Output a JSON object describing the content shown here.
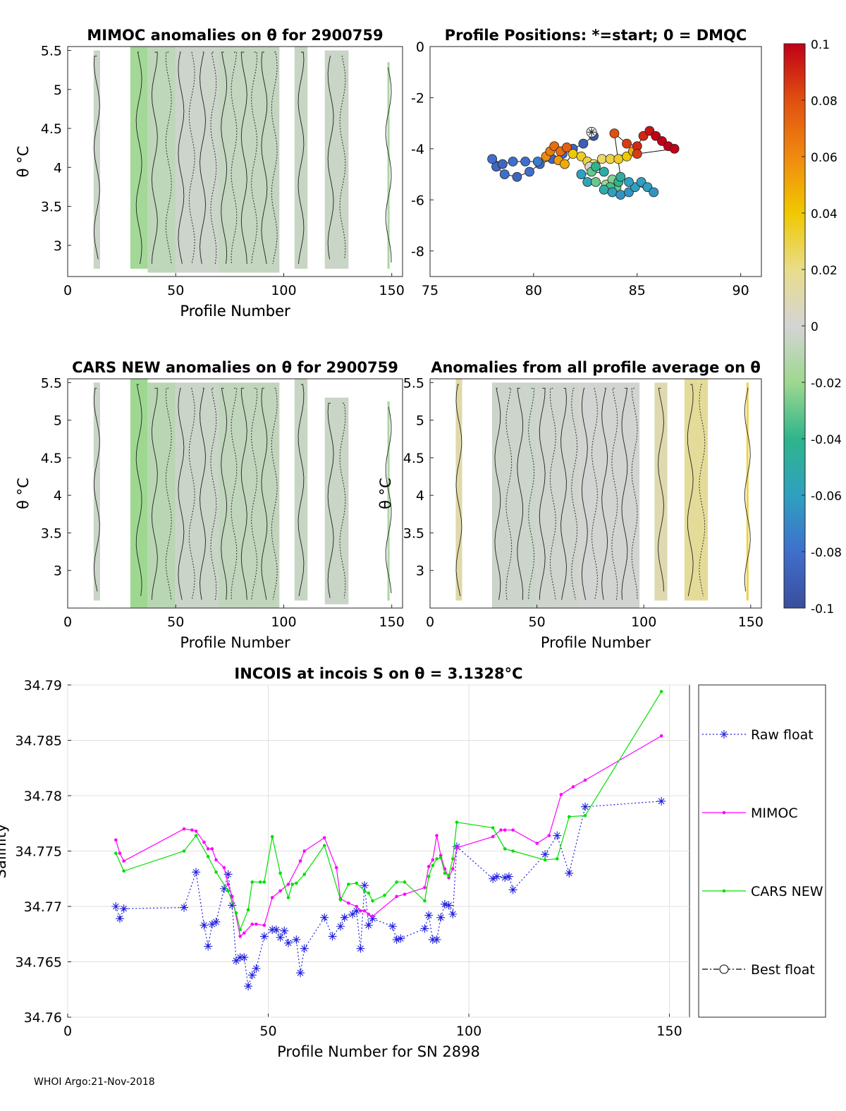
{
  "footer": "WHOI Argo:21-Nov-2018",
  "colorbar": {
    "ticks": [
      "0.1",
      "0.08",
      "0.06",
      "0.04",
      "0.02",
      "0",
      "-0.02",
      "-0.04",
      "-0.06",
      "-0.08",
      "-0.1"
    ],
    "range": [
      -0.1,
      0.1
    ],
    "colors": [
      "#3a4e9c",
      "#3f6fcc",
      "#2fa0c0",
      "#2fb58a",
      "#9ed890",
      "#d4d4d4",
      "#e8dd8a",
      "#f0c800",
      "#f08a10",
      "#e05010",
      "#c00018"
    ]
  },
  "chart_data": [
    {
      "id": "mimoc",
      "type": "heatmap",
      "title": "MIMOC anomalies on θ  for 2900759",
      "xlabel": "Profile Number",
      "ylabel": "θ °C",
      "xlim": [
        0,
        155
      ],
      "ylim": [
        2.6,
        5.55
      ],
      "xticks": [
        "0",
        "50",
        "100",
        "150"
      ],
      "yticks": [
        "3",
        "3.5",
        "4",
        "4.5",
        "5",
        "5.5"
      ],
      "columns": [
        {
          "x0": 12,
          "x1": 15,
          "y0": 2.7,
          "y1": 5.5,
          "value": -0.004
        },
        {
          "x0": 29,
          "x1": 37,
          "y0": 2.7,
          "y1": 5.55,
          "value": -0.018
        },
        {
          "x0": 37,
          "x1": 50,
          "y0": 2.65,
          "y1": 5.55,
          "value": -0.008
        },
        {
          "x0": 50,
          "x1": 70,
          "y0": 2.65,
          "y1": 5.55,
          "value": -0.003
        },
        {
          "x0": 70,
          "x1": 98,
          "y0": 2.65,
          "y1": 5.55,
          "value": -0.006
        },
        {
          "x0": 105,
          "x1": 111,
          "y0": 2.7,
          "y1": 5.55,
          "value": -0.005
        },
        {
          "x0": 119,
          "x1": 130,
          "y0": 2.7,
          "y1": 5.5,
          "value": -0.004
        },
        {
          "x0": 148,
          "x1": 149,
          "y0": 2.7,
          "y1": 5.35,
          "value": -0.015
        }
      ]
    },
    {
      "id": "positions",
      "type": "scatter",
      "title": "Profile Positions: *=start; 0 = DMQC",
      "xlim": [
        75,
        91
      ],
      "ylim": [
        -9,
        0
      ],
      "xticks": [
        "75",
        "80",
        "85",
        "90"
      ],
      "yticks": [
        "0",
        "-2",
        "-4",
        "-6",
        "-8"
      ],
      "points": [
        {
          "lon": 82.9,
          "lat": -3.5,
          "v": -0.095
        },
        {
          "lon": 82.4,
          "lat": -3.8,
          "v": -0.09
        },
        {
          "lon": 81.9,
          "lat": -4.0,
          "v": -0.085
        },
        {
          "lon": 81.4,
          "lat": -4.2,
          "v": -0.08
        },
        {
          "lon": 80.9,
          "lat": -4.4,
          "v": -0.085
        },
        {
          "lon": 80.3,
          "lat": -4.6,
          "v": -0.08
        },
        {
          "lon": 79.8,
          "lat": -4.9,
          "v": -0.08
        },
        {
          "lon": 79.2,
          "lat": -5.1,
          "v": -0.085
        },
        {
          "lon": 78.6,
          "lat": -5.0,
          "v": -0.08
        },
        {
          "lon": 78.2,
          "lat": -4.7,
          "v": -0.085
        },
        {
          "lon": 78.0,
          "lat": -4.4,
          "v": -0.08
        },
        {
          "lon": 78.5,
          "lat": -4.6,
          "v": -0.085
        },
        {
          "lon": 79.0,
          "lat": -4.5,
          "v": -0.08
        },
        {
          "lon": 79.6,
          "lat": -4.5,
          "v": -0.08
        },
        {
          "lon": 80.2,
          "lat": -4.5,
          "v": -0.075
        },
        {
          "lon": 80.6,
          "lat": -4.3,
          "v": 0.06
        },
        {
          "lon": 80.8,
          "lat": -4.1,
          "v": 0.065
        },
        {
          "lon": 81.0,
          "lat": -3.9,
          "v": 0.07
        },
        {
          "lon": 81.3,
          "lat": -4.1,
          "v": 0.07
        },
        {
          "lon": 81.6,
          "lat": -3.95,
          "v": 0.075
        },
        {
          "lon": 81.2,
          "lat": -4.45,
          "v": 0.055
        },
        {
          "lon": 81.5,
          "lat": -4.6,
          "v": 0.05
        },
        {
          "lon": 81.9,
          "lat": -4.2,
          "v": 0.04
        },
        {
          "lon": 82.3,
          "lat": -4.3,
          "v": 0.035
        },
        {
          "lon": 82.6,
          "lat": -4.5,
          "v": 0.03
        },
        {
          "lon": 82.9,
          "lat": -4.6,
          "v": 0.02
        },
        {
          "lon": 83.3,
          "lat": -4.4,
          "v": 0.025
        },
        {
          "lon": 83.7,
          "lat": -4.4,
          "v": 0.03
        },
        {
          "lon": 84.1,
          "lat": -4.4,
          "v": 0.035
        },
        {
          "lon": 84.5,
          "lat": -4.3,
          "v": 0.04
        },
        {
          "lon": 84.8,
          "lat": -4.1,
          "v": 0.05
        },
        {
          "lon": 82.7,
          "lat": -4.7,
          "v": 0.0
        },
        {
          "lon": 82.8,
          "lat": -4.9,
          "v": -0.03
        },
        {
          "lon": 83.0,
          "lat": -4.7,
          "v": -0.04
        },
        {
          "lon": 83.4,
          "lat": -4.9,
          "v": -0.05
        },
        {
          "lon": 82.3,
          "lat": -5.0,
          "v": -0.06
        },
        {
          "lon": 82.6,
          "lat": -5.3,
          "v": -0.055
        },
        {
          "lon": 83.0,
          "lat": -5.3,
          "v": -0.03
        },
        {
          "lon": 83.5,
          "lat": -5.4,
          "v": -0.02
        },
        {
          "lon": 83.8,
          "lat": -5.2,
          "v": -0.025
        },
        {
          "lon": 84.0,
          "lat": -5.5,
          "v": -0.03
        },
        {
          "lon": 83.7,
          "lat": -5.5,
          "v": -0.035
        },
        {
          "lon": 84.1,
          "lat": -5.3,
          "v": -0.04
        },
        {
          "lon": 83.4,
          "lat": -5.6,
          "v": -0.05
        },
        {
          "lon": 83.8,
          "lat": -5.7,
          "v": -0.06
        },
        {
          "lon": 84.2,
          "lat": -5.8,
          "v": -0.065
        },
        {
          "lon": 84.6,
          "lat": -5.7,
          "v": -0.065
        },
        {
          "lon": 84.9,
          "lat": -5.5,
          "v": -0.06
        },
        {
          "lon": 85.2,
          "lat": -5.3,
          "v": -0.06
        },
        {
          "lon": 85.5,
          "lat": -5.5,
          "v": -0.06
        },
        {
          "lon": 85.8,
          "lat": -5.7,
          "v": -0.065
        },
        {
          "lon": 84.6,
          "lat": -5.3,
          "v": -0.06
        },
        {
          "lon": 84.2,
          "lat": -5.1,
          "v": -0.05
        },
        {
          "lon": 83.9,
          "lat": -3.4,
          "v": 0.08
        },
        {
          "lon": 84.5,
          "lat": -3.8,
          "v": 0.085
        },
        {
          "lon": 85.0,
          "lat": -3.9,
          "v": 0.09
        },
        {
          "lon": 85.3,
          "lat": -3.5,
          "v": 0.09
        },
        {
          "lon": 85.6,
          "lat": -3.3,
          "v": 0.095
        },
        {
          "lon": 85.9,
          "lat": -3.5,
          "v": 0.1
        },
        {
          "lon": 86.2,
          "lat": -3.7,
          "v": 0.1
        },
        {
          "lon": 86.5,
          "lat": -3.9,
          "v": 0.1
        },
        {
          "lon": 86.8,
          "lat": -4.0,
          "v": 0.1
        },
        {
          "lon": 85.0,
          "lat": -4.2,
          "v": 0.085
        }
      ],
      "start": {
        "lon": 82.8,
        "lat": -3.35
      }
    },
    {
      "id": "cars",
      "type": "heatmap",
      "title": "CARS NEW anomalies on θ for 2900759",
      "xlabel": "Profile Number",
      "ylabel": "θ °C",
      "xlim": [
        0,
        155
      ],
      "ylim": [
        2.5,
        5.55
      ],
      "xticks": [
        "0",
        "50",
        "100",
        "150"
      ],
      "yticks": [
        "3",
        "3.5",
        "4",
        "4.5",
        "5",
        "5.5"
      ],
      "columns": [
        {
          "x0": 12,
          "x1": 15,
          "y0": 2.6,
          "y1": 5.5,
          "value": -0.004
        },
        {
          "x0": 29,
          "x1": 37,
          "y0": 2.5,
          "y1": 5.55,
          "value": -0.02
        },
        {
          "x0": 37,
          "x1": 50,
          "y0": 2.5,
          "y1": 5.5,
          "value": -0.01
        },
        {
          "x0": 50,
          "x1": 70,
          "y0": 2.5,
          "y1": 5.5,
          "value": -0.004
        },
        {
          "x0": 70,
          "x1": 98,
          "y0": 2.5,
          "y1": 5.5,
          "value": -0.007
        },
        {
          "x0": 105,
          "x1": 111,
          "y0": 2.6,
          "y1": 5.55,
          "value": -0.005
        },
        {
          "x0": 119,
          "x1": 130,
          "y0": 2.55,
          "y1": 5.3,
          "value": -0.004
        },
        {
          "x0": 148,
          "x1": 149,
          "y0": 2.6,
          "y1": 5.25,
          "value": -0.015
        }
      ]
    },
    {
      "id": "average",
      "type": "heatmap",
      "title": "Anomalies from all profile average on θ",
      "xlabel": "Profile Number",
      "ylabel": "θ °C",
      "xlim": [
        0,
        155
      ],
      "ylim": [
        2.5,
        5.55
      ],
      "xticks": [
        "0",
        "50",
        "100",
        "150"
      ],
      "yticks": [
        "3",
        "3.5",
        "4",
        "4.5",
        "5",
        "5.5"
      ],
      "columns": [
        {
          "x0": 12,
          "x1": 15,
          "y0": 2.6,
          "y1": 5.55,
          "value": 0.012
        },
        {
          "x0": 29,
          "x1": 50,
          "y0": 2.5,
          "y1": 5.5,
          "value": -0.003
        },
        {
          "x0": 50,
          "x1": 70,
          "y0": 2.5,
          "y1": 5.5,
          "value": -0.002
        },
        {
          "x0": 70,
          "x1": 98,
          "y0": 2.5,
          "y1": 5.5,
          "value": -0.001
        },
        {
          "x0": 105,
          "x1": 111,
          "y0": 2.6,
          "y1": 5.5,
          "value": 0.01
        },
        {
          "x0": 119,
          "x1": 130,
          "y0": 2.6,
          "y1": 5.55,
          "value": 0.016
        },
        {
          "x0": 148,
          "x1": 149,
          "y0": 2.6,
          "y1": 5.5,
          "value": 0.03
        }
      ]
    },
    {
      "id": "salinity",
      "type": "line",
      "title": "INCOIS at incois S on θ = 3.1328°C",
      "xlabel": "Profile Number for SN 2898",
      "ylabel": "Salinity",
      "xlim": [
        0,
        155
      ],
      "ylim": [
        34.76,
        34.79
      ],
      "xticks": [
        "0",
        "50",
        "100",
        "150"
      ],
      "yticks": [
        "34.76",
        "34.765",
        "34.77",
        "34.775",
        "34.78",
        "34.785",
        "34.79"
      ],
      "grid": true,
      "legend": [
        "Raw float",
        "MIMOC",
        "CARS NEW",
        "Best float"
      ],
      "series": [
        {
          "name": "Raw float",
          "color": "#1f1fdc",
          "style": "dotted",
          "marker": "star",
          "x": [
            12,
            13,
            14,
            29,
            32,
            34,
            35,
            36,
            37,
            39,
            40,
            41,
            42,
            43,
            44,
            45,
            46,
            47,
            49,
            51,
            52,
            53,
            54,
            55,
            57,
            58,
            59,
            64,
            66,
            68,
            69,
            71,
            72,
            73,
            74,
            75,
            76,
            81,
            82,
            83,
            89,
            90,
            91,
            92,
            93,
            94,
            95,
            96,
            97,
            106,
            107,
            109,
            110,
            111,
            119,
            122,
            125,
            129,
            148
          ],
          "y": [
            34.77,
            34.7689,
            34.7698,
            34.7699,
            34.7731,
            34.7683,
            34.7664,
            34.7684,
            34.7686,
            34.7716,
            34.7729,
            34.7701,
            34.7651,
            34.7654,
            34.7654,
            34.7628,
            34.7638,
            34.7644,
            34.7673,
            34.7679,
            34.7679,
            34.7672,
            34.7678,
            34.7667,
            34.767,
            34.764,
            34.7662,
            34.769,
            34.7673,
            34.7682,
            34.769,
            34.7693,
            34.7696,
            34.7662,
            34.7719,
            34.7683,
            34.7689,
            34.7682,
            34.767,
            34.7671,
            34.768,
            34.7692,
            34.767,
            34.767,
            34.769,
            34.7702,
            34.7701,
            34.7693,
            34.7754,
            34.7725,
            34.7727,
            34.7726,
            34.7727,
            34.7715,
            34.7747,
            34.7764,
            34.773,
            34.779,
            34.7795
          ]
        },
        {
          "name": "MIMOC",
          "color": "#ff00ff",
          "style": "solid",
          "marker": "dot",
          "x": [
            12,
            13,
            14,
            29,
            31,
            32,
            34,
            35,
            36,
            37,
            39,
            40,
            41,
            43,
            44,
            46,
            47,
            49,
            51,
            53,
            55,
            58,
            59,
            64,
            67,
            68,
            70,
            72,
            73,
            74,
            75,
            76,
            82,
            84,
            89,
            90,
            91,
            92,
            93,
            94,
            95,
            96,
            97,
            106,
            108,
            109,
            111,
            117,
            120,
            123,
            126,
            129,
            148
          ],
          "y": [
            34.776,
            34.7748,
            34.7741,
            34.777,
            34.7769,
            34.7768,
            34.7758,
            34.7752,
            34.7752,
            34.7742,
            34.7735,
            34.772,
            34.7709,
            34.7673,
            34.7676,
            34.7684,
            34.7684,
            34.7683,
            34.7708,
            34.7714,
            34.772,
            34.7741,
            34.775,
            34.7762,
            34.7735,
            34.7707,
            34.7703,
            34.77,
            34.7696,
            34.7696,
            34.7693,
            34.7691,
            34.7709,
            34.7711,
            34.7717,
            34.7736,
            34.7742,
            34.7764,
            34.7746,
            34.7734,
            34.7726,
            34.7734,
            34.7753,
            34.7763,
            34.7769,
            34.7769,
            34.7769,
            34.7757,
            34.7764,
            34.7801,
            34.7808,
            34.7814,
            34.7854
          ]
        },
        {
          "name": "CARS NEW",
          "color": "#00e000",
          "style": "solid",
          "marker": "dot",
          "x": [
            12,
            14,
            29,
            32,
            35,
            37,
            40,
            42,
            43,
            45,
            46,
            48,
            49,
            51,
            53,
            55,
            56,
            57,
            59,
            64,
            68,
            70,
            72,
            74,
            75,
            76,
            79,
            82,
            84,
            89,
            90,
            91,
            92,
            93,
            94,
            95,
            96,
            97,
            106,
            109,
            111,
            119,
            122,
            125,
            129,
            148
          ],
          "y": [
            34.7748,
            34.7732,
            34.775,
            34.7764,
            34.7745,
            34.7731,
            34.7714,
            34.7694,
            34.7679,
            34.7697,
            34.7722,
            34.7722,
            34.7722,
            34.7763,
            34.773,
            34.7708,
            34.772,
            34.7721,
            34.7729,
            34.7755,
            34.7706,
            34.772,
            34.7721,
            34.7714,
            34.7712,
            34.7705,
            34.771,
            34.7722,
            34.7722,
            34.7705,
            34.7727,
            34.7737,
            34.7743,
            34.7744,
            34.773,
            34.7728,
            34.7743,
            34.7776,
            34.7771,
            34.7752,
            34.775,
            34.7742,
            34.7743,
            34.7781,
            34.7782,
            34.7894
          ]
        },
        {
          "name": "Best float",
          "color": "#000000",
          "style": "dashdot",
          "marker": "circle",
          "x": [],
          "y": []
        }
      ]
    }
  ]
}
